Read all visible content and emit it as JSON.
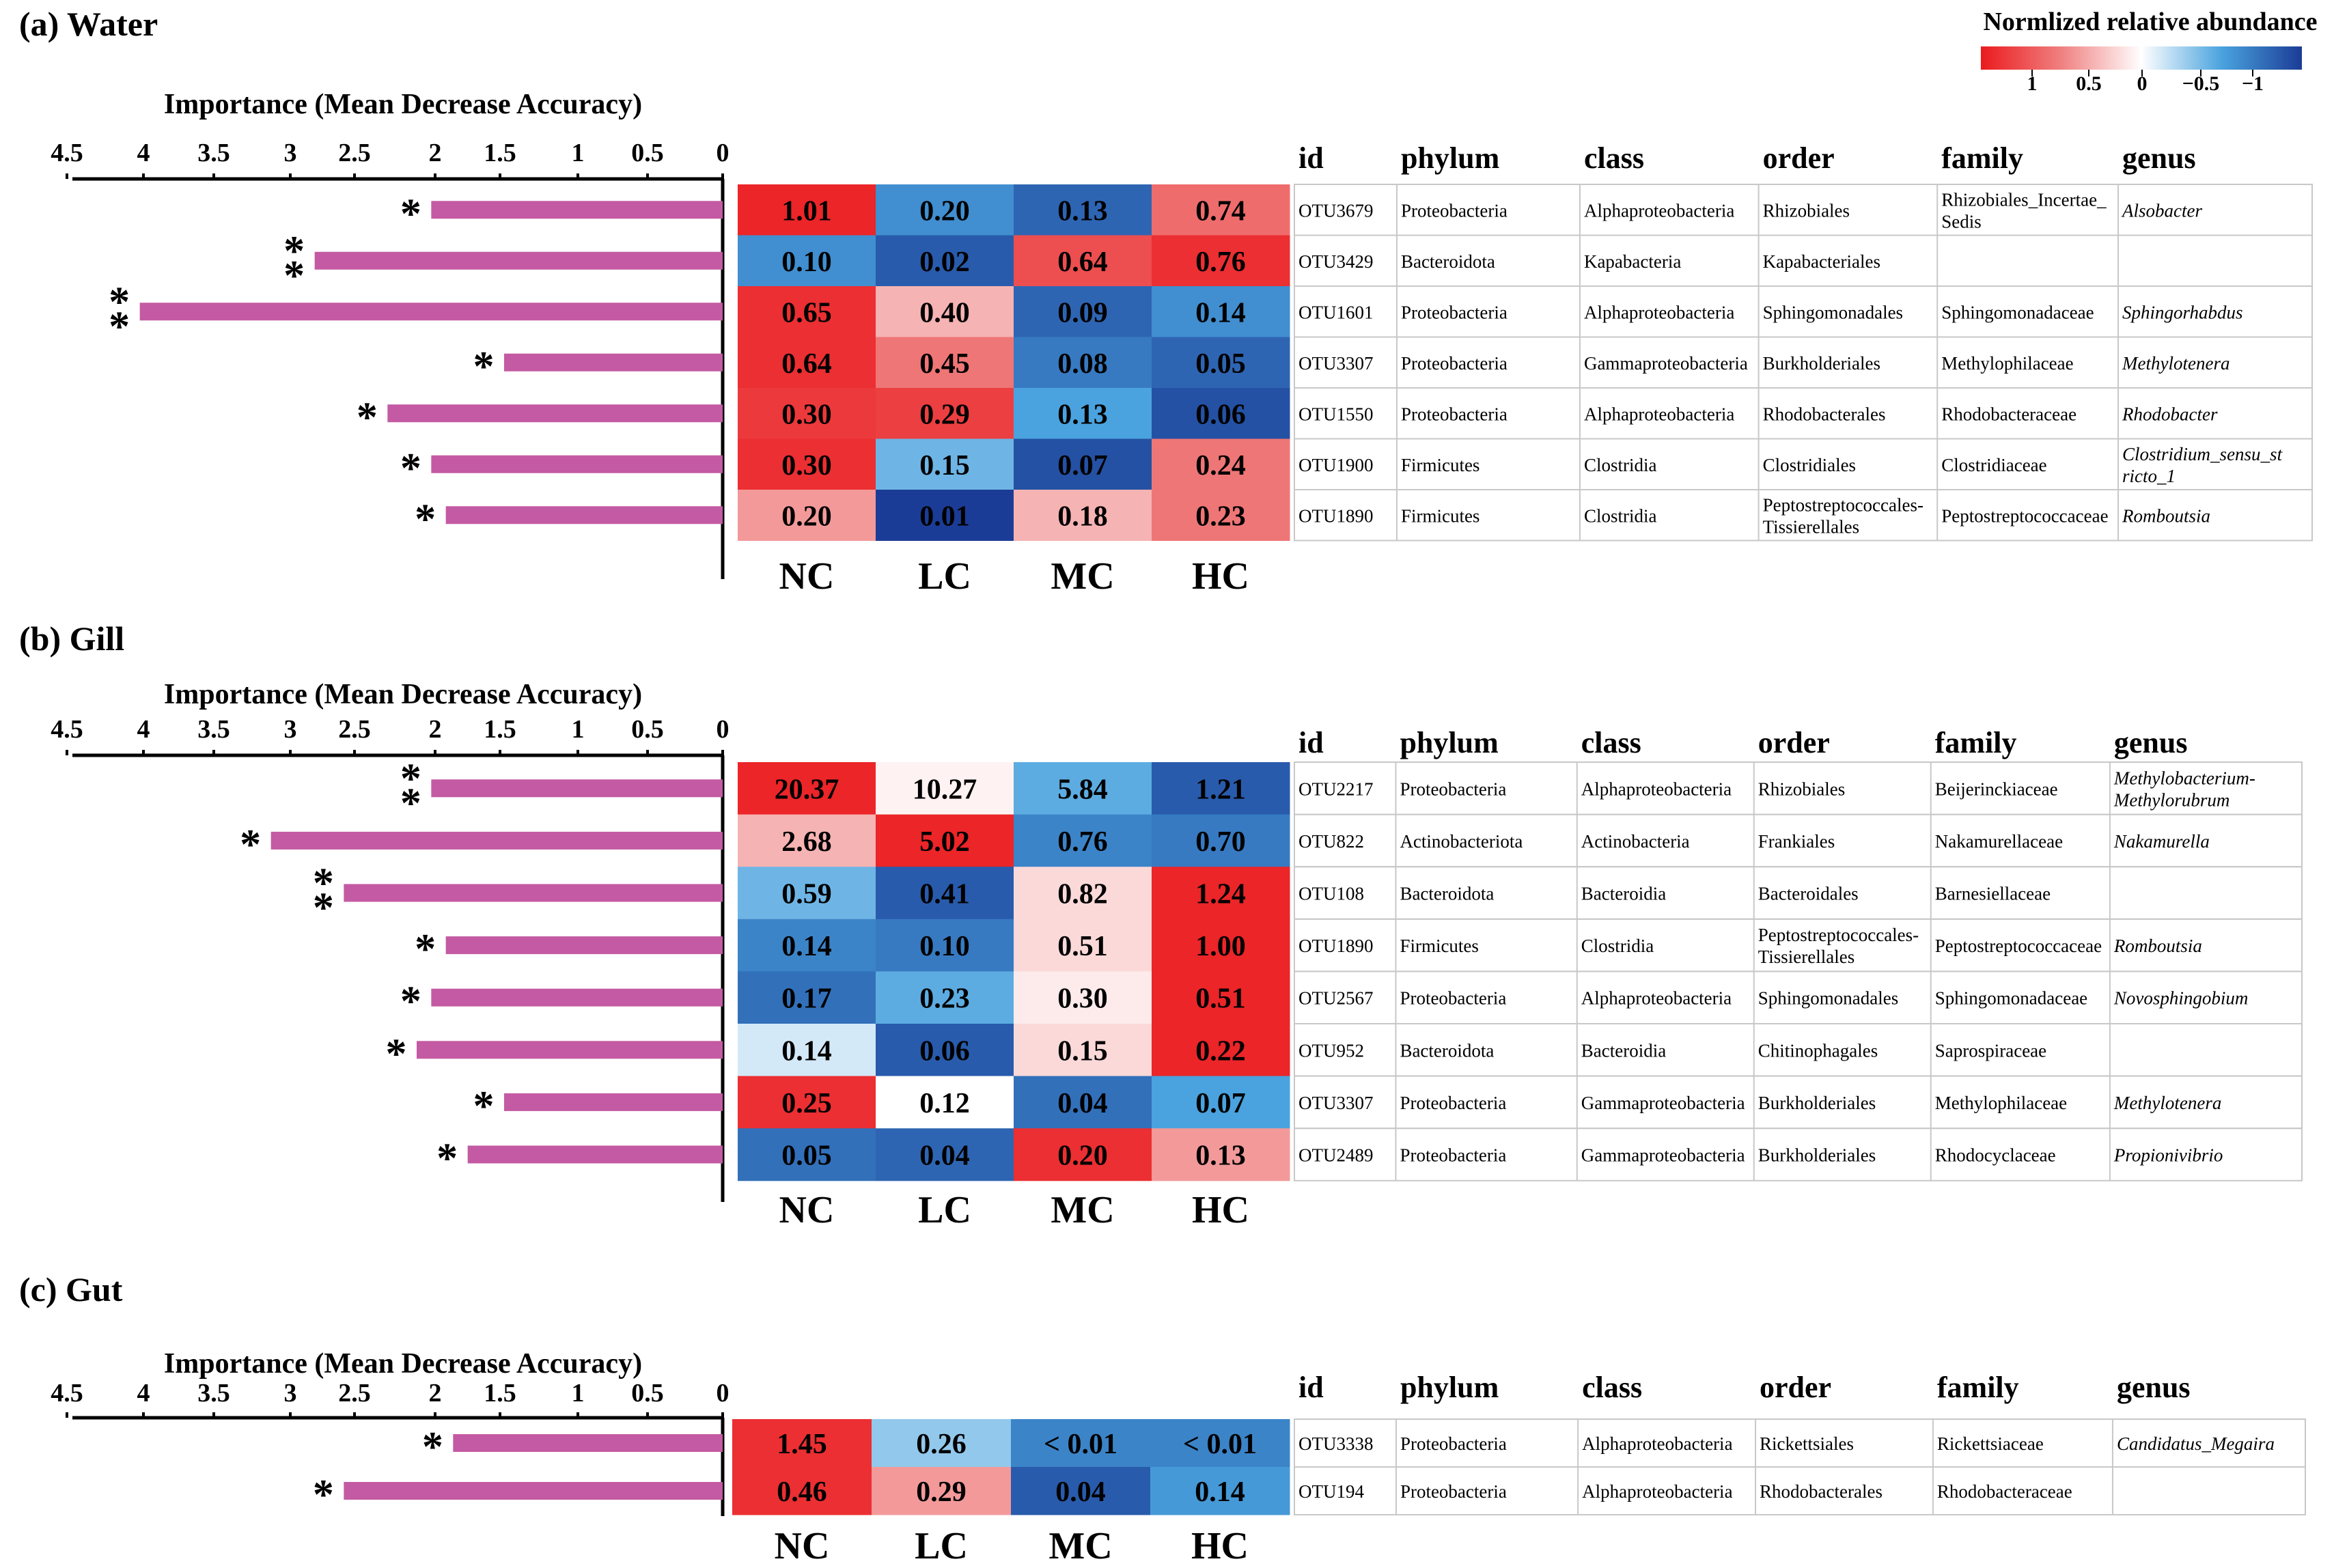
{
  "legend": {
    "title": "Normlized relative abundance",
    "ticks": [
      "1",
      "0.5",
      "0",
      "−0.5",
      "−1"
    ],
    "gradient_colors": [
      "#ea1b1e",
      "#f08080",
      "#ffffff",
      "#4aa3de",
      "#1b3c96"
    ]
  },
  "colors": {
    "bar": "#c45aa3",
    "axis": "#000000",
    "table_border": "#c8c8c8"
  },
  "panels": [
    {
      "key": "water",
      "label": "(a)  Water",
      "axis_title": "Importance (Mean Decrease Accuracy)",
      "axis_ticks": [
        "4.5",
        "4",
        "3.5",
        "3",
        "2.5",
        "2",
        "1.5",
        "1",
        "0.5",
        "0"
      ],
      "groups": [
        "NC",
        "LC",
        "MC",
        "HC"
      ],
      "table_headers": [
        "id",
        "phylum",
        "class",
        "order",
        "family",
        "genus"
      ],
      "rows": [
        {
          "importance": 2.0,
          "sig": "*",
          "values": [
            "1.01",
            "0.20",
            "0.13",
            "0.74"
          ],
          "norm": [
            0.95,
            -0.6,
            -0.8,
            0.6
          ],
          "id": "OTU3679",
          "phylum": "Proteobacteria",
          "class": "Alphaproteobacteria",
          "order": "Rhizobiales",
          "family": "Rhizobiales_Incertae_ Sedis",
          "genus": "Alsobacter"
        },
        {
          "importance": 2.8,
          "sig": "**",
          "values": [
            "0.10",
            "0.02",
            "0.64",
            "0.76"
          ],
          "norm": [
            -0.6,
            -0.85,
            0.75,
            0.9
          ],
          "id": "OTU3429",
          "phylum": "Bacteroidota",
          "class": "Kapabacteria",
          "order": "Kapabacteriales",
          "family": "",
          "genus": ""
        },
        {
          "importance": 4.0,
          "sig": "**",
          "values": [
            "0.65",
            "0.40",
            "0.09",
            "0.14"
          ],
          "norm": [
            0.9,
            0.3,
            -0.8,
            -0.6
          ],
          "id": "OTU1601",
          "phylum": "Proteobacteria",
          "class": "Alphaproteobacteria",
          "order": "Sphingomonadales",
          "family": "Sphingomonadaceae",
          "genus": "Sphingorhabdus"
        },
        {
          "importance": 1.5,
          "sig": "*",
          "values": [
            "0.64",
            "0.45",
            "0.08",
            "0.05"
          ],
          "norm": [
            0.9,
            0.55,
            -0.7,
            -0.8
          ],
          "id": "OTU3307",
          "phylum": "Proteobacteria",
          "class": "Gammaproteobacteria",
          "order": "Burkholderiales",
          "family": "Methylophilaceae",
          "genus": "Methylotenera"
        },
        {
          "importance": 2.3,
          "sig": "*",
          "values": [
            "0.30",
            "0.29",
            "0.13",
            "0.06"
          ],
          "norm": [
            0.85,
            0.82,
            -0.5,
            -0.9
          ],
          "id": "OTU1550",
          "phylum": "Proteobacteria",
          "class": "Alphaproteobacteria",
          "order": "Rhodobacterales",
          "family": "Rhodobacteraceae",
          "genus": "Rhodobacter"
        },
        {
          "importance": 2.0,
          "sig": "*",
          "values": [
            "0.30",
            "0.15",
            "0.07",
            "0.24"
          ],
          "norm": [
            0.9,
            -0.4,
            -0.9,
            0.55
          ],
          "id": "OTU1900",
          "phylum": "Firmicutes",
          "class": "Clostridia",
          "order": "Clostridiales",
          "family": "Clostridiaceae",
          "genus": "Clostridium_sensu_st ricto_1"
        },
        {
          "importance": 1.9,
          "sig": "*",
          "values": [
            "0.20",
            "0.01",
            "0.18",
            "0.23"
          ],
          "norm": [
            0.4,
            -1.0,
            0.3,
            0.55
          ],
          "id": "OTU1890",
          "phylum": "Firmicutes",
          "class": "Clostridia",
          "order": "Peptostreptococcales- Tissierellales",
          "family": "Peptostreptococcaceae",
          "genus": "Romboutsia"
        }
      ]
    },
    {
      "key": "gill",
      "label": "(b)  Gill",
      "axis_title": "Importance (Mean Decrease Accuracy)",
      "axis_ticks": [
        "4.5",
        "4",
        "3.5",
        "3",
        "2.5",
        "2",
        "1.5",
        "1",
        "0.5",
        "0"
      ],
      "groups": [
        "NC",
        "LC",
        "MC",
        "HC"
      ],
      "table_headers": [
        "id",
        "phylum",
        "class",
        "order",
        "family",
        "genus"
      ],
      "rows": [
        {
          "importance": 2.0,
          "sig": "**",
          "values": [
            "20.37",
            "10.27",
            "5.84",
            "1.21"
          ],
          "norm": [
            0.95,
            0.05,
            -0.45,
            -0.85
          ],
          "id": "OTU2217",
          "phylum": "Proteobacteria",
          "class": "Alphaproteobacteria",
          "order": "Rhizobiales",
          "family": "Beijerinckiaceae",
          "genus": "Methylobacterium- Methylorubrum"
        },
        {
          "importance": 3.1,
          "sig": "*",
          "values": [
            "2.68",
            "5.02",
            "0.76",
            "0.70"
          ],
          "norm": [
            0.3,
            0.95,
            -0.65,
            -0.7
          ],
          "id": "OTU822",
          "phylum": "Actinobacteriota",
          "class": "Actinobacteria",
          "order": "Frankiales",
          "family": "Nakamurellaceae",
          "genus": "Nakamurella"
        },
        {
          "importance": 2.6,
          "sig": "**",
          "values": [
            "0.59",
            "0.41",
            "0.82",
            "1.24"
          ],
          "norm": [
            -0.4,
            -0.85,
            0.15,
            0.95
          ],
          "id": "OTU108",
          "phylum": "Bacteroidota",
          "class": "Bacteroidia",
          "order": "Bacteroidales",
          "family": "Barnesiellaceae",
          "genus": ""
        },
        {
          "importance": 1.9,
          "sig": "*",
          "values": [
            "0.14",
            "0.10",
            "0.51",
            "1.00"
          ],
          "norm": [
            -0.65,
            -0.7,
            0.15,
            0.95
          ],
          "id": "OTU1890",
          "phylum": "Firmicutes",
          "class": "Clostridia",
          "order": "Peptostreptococcales- Tissierellales",
          "family": "Peptostreptococcaceae",
          "genus": "Romboutsia"
        },
        {
          "importance": 2.0,
          "sig": "*",
          "values": [
            "0.17",
            "0.23",
            "0.30",
            "0.51"
          ],
          "norm": [
            -0.75,
            -0.45,
            0.08,
            0.95
          ],
          "id": "OTU2567",
          "phylum": "Proteobacteria",
          "class": "Alphaproteobacteria",
          "order": "Sphingomonadales",
          "family": "Sphingomonadaceae",
          "genus": "Novosphingobium"
        },
        {
          "importance": 2.1,
          "sig": "*",
          "values": [
            "0.14",
            "0.06",
            "0.15",
            "0.22"
          ],
          "norm": [
            -0.12,
            -0.85,
            0.15,
            0.95
          ],
          "id": "OTU952",
          "phylum": "Bacteroidota",
          "class": "Bacteroidia",
          "order": "Chitinophagales",
          "family": "Saprospiraceae",
          "genus": ""
        },
        {
          "importance": 1.5,
          "sig": "*",
          "values": [
            "0.25",
            "0.12",
            "0.04",
            "0.07"
          ],
          "norm": [
            0.9,
            0.0,
            -0.75,
            -0.5
          ],
          "id": "OTU3307",
          "phylum": "Proteobacteria",
          "class": "Gammaproteobacteria",
          "order": "Burkholderiales",
          "family": "Methylophilaceae",
          "genus": "Methylotenera"
        },
        {
          "importance": 1.75,
          "sig": "*",
          "values": [
            "0.05",
            "0.04",
            "0.20",
            "0.13"
          ],
          "norm": [
            -0.75,
            -0.8,
            0.9,
            0.4
          ],
          "id": "OTU2489",
          "phylum": "Proteobacteria",
          "class": "Gammaproteobacteria",
          "order": "Burkholderiales",
          "family": "Rhodocyclaceae",
          "genus": "Propionivibrio"
        }
      ]
    },
    {
      "key": "gut",
      "label": "(c)  Gut",
      "axis_title": "Importance (Mean Decrease Accuracy)",
      "axis_ticks": [
        "4.5",
        "4",
        "3.5",
        "3",
        "2.5",
        "2",
        "1.5",
        "1",
        "0.5",
        "0"
      ],
      "groups": [
        "NC",
        "LC",
        "MC",
        "HC"
      ],
      "table_headers": [
        "id",
        "phylum",
        "class",
        "order",
        "family",
        "genus"
      ],
      "rows": [
        {
          "importance": 1.85,
          "sig": "*",
          "values": [
            "1.45",
            "0.26",
            "< 0.01",
            "< 0.01"
          ],
          "norm": [
            0.9,
            -0.3,
            -0.65,
            -0.65
          ],
          "id": "OTU3338",
          "phylum": "Proteobacteria",
          "class": "Alphaproteobacteria",
          "order": "Rickettsiales",
          "family": "Rickettsiaceae",
          "genus": "Candidatus_Megaira"
        },
        {
          "importance": 2.6,
          "sig": "*",
          "values": [
            "0.46",
            "0.29",
            "0.04",
            "0.14"
          ],
          "norm": [
            0.9,
            0.4,
            -0.85,
            -0.55
          ],
          "id": "OTU194",
          "phylum": "Proteobacteria",
          "class": "Alphaproteobacteria",
          "order": "Rhodobacterales",
          "family": "Rhodobacteraceae",
          "genus": ""
        }
      ]
    }
  ],
  "chart_data": [
    {
      "type": "bar",
      "title": "Water",
      "xlabel": "Importance (Mean Decrease Accuracy)",
      "xlim": [
        0,
        4.5
      ],
      "orientation": "horizontal",
      "categories": [
        "OTU3679",
        "OTU3429",
        "OTU1601",
        "OTU3307",
        "OTU1550",
        "OTU1900",
        "OTU1890"
      ],
      "values": [
        2.0,
        2.8,
        4.0,
        1.5,
        2.3,
        2.0,
        1.9
      ]
    },
    {
      "type": "heatmap",
      "title": "Water",
      "columns": [
        "NC",
        "LC",
        "MC",
        "HC"
      ],
      "rows": [
        "OTU3679",
        "OTU3429",
        "OTU1601",
        "OTU3307",
        "OTU1550",
        "OTU1900",
        "OTU1890"
      ],
      "labels": [
        [
          "1.01",
          "0.20",
          "0.13",
          "0.74"
        ],
        [
          "0.10",
          "0.02",
          "0.64",
          "0.76"
        ],
        [
          "0.65",
          "0.40",
          "0.09",
          "0.14"
        ],
        [
          "0.64",
          "0.45",
          "0.08",
          "0.05"
        ],
        [
          "0.30",
          "0.29",
          "0.13",
          "0.06"
        ],
        [
          "0.30",
          "0.15",
          "0.07",
          "0.24"
        ],
        [
          "0.20",
          "0.01",
          "0.18",
          "0.23"
        ]
      ],
      "color_scale": [
        -1,
        1
      ]
    },
    {
      "type": "bar",
      "title": "Gill",
      "xlabel": "Importance (Mean Decrease Accuracy)",
      "xlim": [
        0,
        4.5
      ],
      "orientation": "horizontal",
      "categories": [
        "OTU2217",
        "OTU822",
        "OTU108",
        "OTU1890",
        "OTU2567",
        "OTU952",
        "OTU3307",
        "OTU2489"
      ],
      "values": [
        2.0,
        3.1,
        2.6,
        1.9,
        2.0,
        2.1,
        1.5,
        1.75
      ]
    },
    {
      "type": "heatmap",
      "title": "Gill",
      "columns": [
        "NC",
        "LC",
        "MC",
        "HC"
      ],
      "rows": [
        "OTU2217",
        "OTU822",
        "OTU108",
        "OTU1890",
        "OTU2567",
        "OTU952",
        "OTU3307",
        "OTU2489"
      ],
      "labels": [
        [
          "20.37",
          "10.27",
          "5.84",
          "1.21"
        ],
        [
          "2.68",
          "5.02",
          "0.76",
          "0.70"
        ],
        [
          "0.59",
          "0.41",
          "0.82",
          "1.24"
        ],
        [
          "0.14",
          "0.10",
          "0.51",
          "1.00"
        ],
        [
          "0.17",
          "0.23",
          "0.30",
          "0.51"
        ],
        [
          "0.14",
          "0.06",
          "0.15",
          "0.22"
        ],
        [
          "0.25",
          "0.12",
          "0.04",
          "0.07"
        ],
        [
          "0.05",
          "0.04",
          "0.20",
          "0.13"
        ]
      ],
      "color_scale": [
        -1,
        1
      ]
    },
    {
      "type": "bar",
      "title": "Gut",
      "xlabel": "Importance (Mean Decrease Accuracy)",
      "xlim": [
        0,
        4.5
      ],
      "orientation": "horizontal",
      "categories": [
        "OTU3338",
        "OTU194"
      ],
      "values": [
        1.85,
        2.6
      ]
    },
    {
      "type": "heatmap",
      "title": "Gut",
      "columns": [
        "NC",
        "LC",
        "MC",
        "HC"
      ],
      "rows": [
        "OTU3338",
        "OTU194"
      ],
      "labels": [
        [
          "1.45",
          "0.26",
          "< 0.01",
          "< 0.01"
        ],
        [
          "0.46",
          "0.29",
          "0.04",
          "0.14"
        ]
      ],
      "color_scale": [
        -1,
        1
      ]
    }
  ]
}
